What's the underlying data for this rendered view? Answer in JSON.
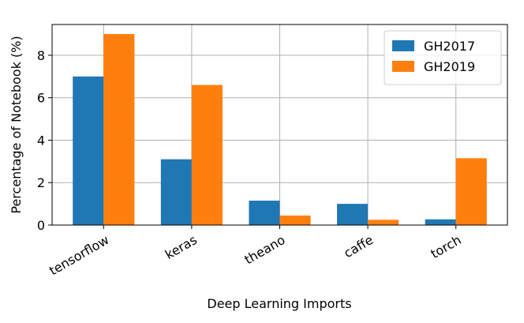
{
  "chart_data": {
    "type": "bar",
    "x_label": "Deep Learning Imports",
    "y_label": "Percentage of Notebook (%)",
    "categories": [
      "tensorflow",
      "keras",
      "theano",
      "caffe",
      "torch"
    ],
    "series": [
      {
        "name": "GH2017",
        "color": "#1f77b4",
        "values": [
          7.0,
          3.1,
          1.15,
          1.0,
          0.27
        ]
      },
      {
        "name": "GH2019",
        "color": "#ff7f0e",
        "values": [
          9.0,
          6.6,
          0.45,
          0.25,
          3.15
        ]
      }
    ],
    "ylim": [
      0,
      9.45
    ],
    "yticks": [
      0,
      2,
      4,
      6,
      8
    ],
    "grid": true,
    "legend": "upper right"
  }
}
